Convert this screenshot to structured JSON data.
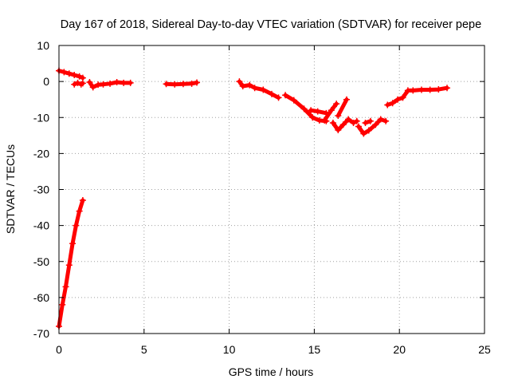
{
  "chart_data": {
    "type": "scatter",
    "title": "Day 167 of 2018, Sidereal Day-to-day VTEC variation (SDTVAR) for receiver pepe",
    "xlabel": "GPS time / hours",
    "ylabel": "SDTVAR / TECUs",
    "xlim": [
      0,
      25
    ],
    "ylim": [
      -70,
      10
    ],
    "x_ticks": [
      0,
      5,
      10,
      15,
      20,
      25
    ],
    "y_ticks": [
      -70,
      -60,
      -50,
      -40,
      -30,
      -20,
      -10,
      0,
      10
    ],
    "grid": true,
    "legend": "none",
    "colors": {
      "series": "#ff0000",
      "grid": "#a0a0a0",
      "axis": "#000000"
    },
    "series": [
      {
        "name": "SDTVAR",
        "segments": [
          [
            [
              0.0,
              -68
            ],
            [
              0.2,
              -62
            ],
            [
              0.4,
              -57
            ],
            [
              0.6,
              -51
            ],
            [
              0.8,
              -45
            ],
            [
              1.0,
              -40
            ],
            [
              1.2,
              -36
            ],
            [
              1.4,
              -33
            ]
          ],
          [
            [
              0.0,
              3.0
            ],
            [
              0.3,
              2.6
            ],
            [
              0.6,
              2.2
            ],
            [
              0.9,
              1.8
            ],
            [
              1.2,
              1.4
            ],
            [
              1.4,
              1.0
            ]
          ],
          [
            [
              0.9,
              -0.8
            ],
            [
              1.1,
              -0.4
            ],
            [
              1.3,
              -0.8
            ],
            [
              1.4,
              -0.5
            ]
          ],
          [
            [
              1.8,
              -0.2
            ],
            [
              2.0,
              -1.6
            ],
            [
              2.3,
              -0.9
            ],
            [
              2.6,
              -0.8
            ],
            [
              3.0,
              -0.6
            ],
            [
              3.4,
              -0.2
            ],
            [
              3.8,
              -0.4
            ],
            [
              4.2,
              -0.4
            ]
          ],
          [
            [
              6.3,
              -0.7
            ],
            [
              6.8,
              -0.8
            ],
            [
              7.3,
              -0.7
            ],
            [
              7.8,
              -0.6
            ],
            [
              8.1,
              -0.3
            ]
          ],
          [
            [
              10.6,
              0.0
            ],
            [
              10.8,
              -1.3
            ],
            [
              11.2,
              -1.0
            ],
            [
              11.5,
              -1.8
            ],
            [
              12.0,
              -2.3
            ],
            [
              12.5,
              -3.5
            ],
            [
              12.9,
              -4.5
            ]
          ],
          [
            [
              13.3,
              -3.8
            ],
            [
              13.8,
              -5.2
            ],
            [
              14.4,
              -7.6
            ],
            [
              14.9,
              -10.0
            ],
            [
              15.3,
              -10.8
            ],
            [
              15.7,
              -11.0
            ]
          ],
          [
            [
              14.8,
              -8.0
            ],
            [
              15.2,
              -8.3
            ],
            [
              15.7,
              -8.8
            ]
          ],
          [
            [
              15.6,
              -10.8
            ],
            [
              16.0,
              -8.0
            ],
            [
              16.3,
              -6.2
            ]
          ],
          [
            [
              16.1,
              -11.5
            ],
            [
              16.4,
              -13.5
            ],
            [
              16.7,
              -12.0
            ],
            [
              17.0,
              -10.5
            ],
            [
              17.3,
              -11.5
            ],
            [
              17.5,
              -11.0
            ]
          ],
          [
            [
              16.4,
              -9.5
            ],
            [
              16.9,
              -5.0
            ]
          ],
          [
            [
              17.6,
              -12.5
            ],
            [
              17.9,
              -14.5
            ],
            [
              18.2,
              -13.6
            ],
            [
              18.6,
              -12.0
            ],
            [
              18.9,
              -10.5
            ],
            [
              19.2,
              -11.0
            ]
          ],
          [
            [
              19.3,
              -6.5
            ],
            [
              19.6,
              -6.0
            ],
            [
              19.9,
              -5.0
            ],
            [
              20.2,
              -4.5
            ],
            [
              20.5,
              -2.5
            ],
            [
              20.8,
              -2.5
            ],
            [
              21.3,
              -2.3
            ],
            [
              21.8,
              -2.3
            ],
            [
              22.3,
              -2.2
            ],
            [
              22.8,
              -1.8
            ]
          ],
          [
            [
              18.0,
              -11.5
            ],
            [
              18.3,
              -11.0
            ]
          ]
        ]
      }
    ]
  }
}
